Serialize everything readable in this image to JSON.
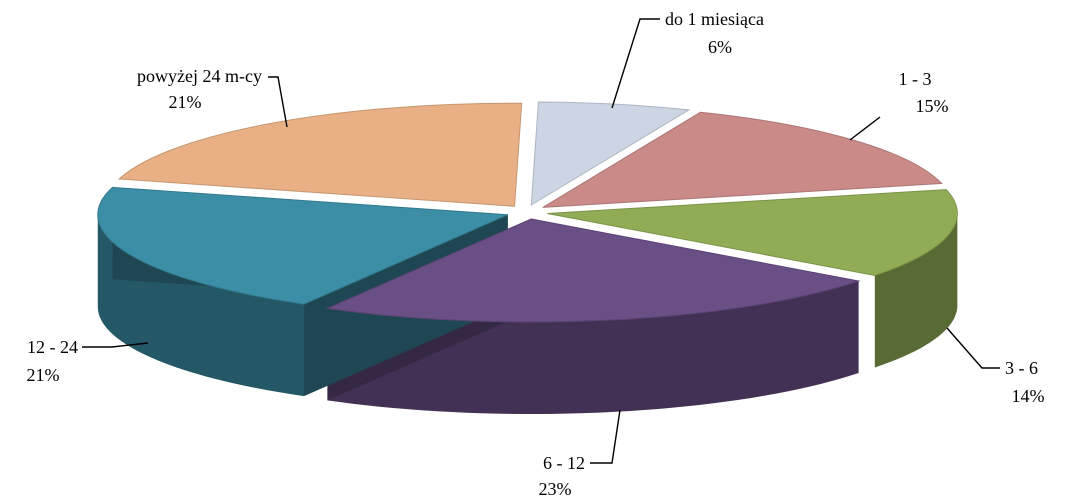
{
  "chart_data": {
    "type": "pie",
    "style": "3d-exploded",
    "slices": [
      {
        "label": "do 1 miesiąca",
        "pct_text": "6%",
        "value": 6,
        "color": "#ccd5e3"
      },
      {
        "label": "1 - 3",
        "pct_text": "15%",
        "value": 15,
        "color": "#c98a88"
      },
      {
        "label": "3 - 6",
        "pct_text": "14%",
        "value": 14,
        "color": "#90ad55"
      },
      {
        "label": "6 - 12",
        "pct_text": "23%",
        "value": 23,
        "color": "#6a4f87"
      },
      {
        "label": "12 - 24",
        "pct_text": "21%",
        "value": 21,
        "color": "#3b8ea5"
      },
      {
        "label": "powyżej 24 m-cy",
        "pct_text": "21%",
        "value": 21,
        "color": "#e8b084"
      }
    ],
    "legend": "none",
    "labels_position": "outside-with-leader-lines"
  }
}
